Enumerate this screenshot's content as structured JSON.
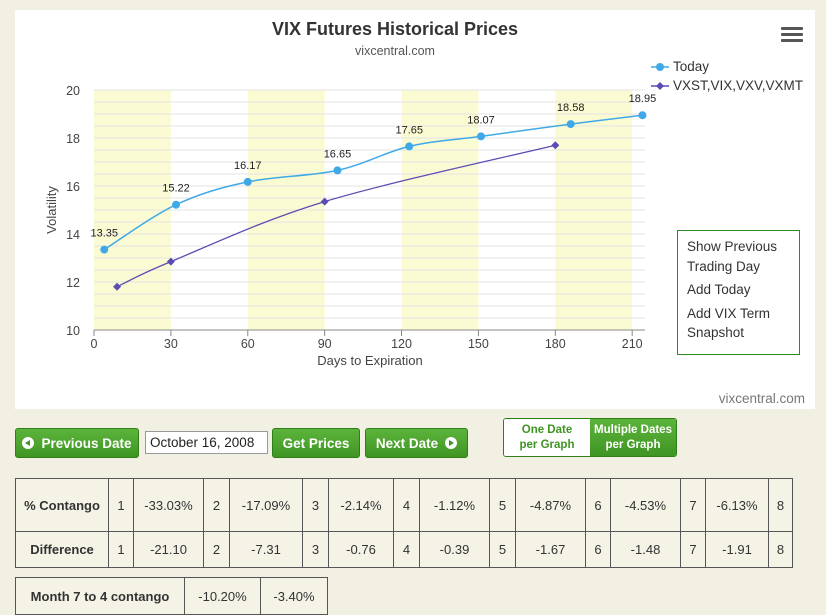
{
  "chart": {
    "title": "VIX Futures Historical Prices",
    "subtitle": "vixcentral.com",
    "credit": "vixcentral.com"
  },
  "chart_data": {
    "type": "line",
    "title": "VIX Futures Historical Prices",
    "subtitle": "vixcentral.com",
    "xlabel": "Days to Expiration",
    "ylabel": "Volatility",
    "xlim": [
      0,
      215
    ],
    "ylim": [
      10,
      20
    ],
    "x_ticks": [
      0,
      30,
      60,
      90,
      120,
      150,
      180,
      210
    ],
    "y_ticks": [
      10,
      12,
      14,
      16,
      18,
      20
    ],
    "grid": true,
    "legend_position": "top-right",
    "series": [
      {
        "name": "Today",
        "color": "#3fa9e8",
        "x": [
          4,
          32,
          60,
          95,
          123,
          151,
          186,
          214
        ],
        "y": [
          13.35,
          15.22,
          16.17,
          16.65,
          17.65,
          18.07,
          18.58,
          18.95
        ],
        "labels": [
          "13.35",
          "15.22",
          "16.17",
          "16.65",
          "17.65",
          "18.07",
          "18.58",
          "18.95"
        ]
      },
      {
        "name": "VXST,VIX,VXV,VXMT",
        "color": "#5b4db3",
        "x": [
          9,
          30,
          90,
          180
        ],
        "y": [
          11.8,
          12.85,
          15.35,
          17.7
        ]
      }
    ],
    "shaded_bands": [
      [
        0,
        30
      ],
      [
        60,
        90
      ],
      [
        120,
        150
      ],
      [
        180,
        210
      ]
    ]
  },
  "side_menu": {
    "show_previous": "Show Previous Trading Day",
    "add_today": "Add Today",
    "add_vix_term": "Add VIX Term Snapshot"
  },
  "controls": {
    "previous_date": "Previous Date",
    "date_value": "October 16, 2008",
    "get_prices": "Get Prices",
    "next_date": "Next Date",
    "one_date": "One Date per Graph",
    "multiple_dates": "Multiple Dates per Graph"
  },
  "table": {
    "contango_label": "% Contango",
    "contango": [
      {
        "month": "1",
        "value": "-33.03%"
      },
      {
        "month": "2",
        "value": "-17.09%"
      },
      {
        "month": "3",
        "value": "-2.14%"
      },
      {
        "month": "4",
        "value": "-1.12%"
      },
      {
        "month": "5",
        "value": "-4.87%"
      },
      {
        "month": "6",
        "value": "-4.53%"
      },
      {
        "month": "7",
        "value": "-6.13%"
      },
      {
        "month": "8",
        "value": ""
      }
    ],
    "difference_label": "Difference",
    "difference": [
      {
        "month": "1",
        "value": "-21.10"
      },
      {
        "month": "2",
        "value": "-7.31"
      },
      {
        "month": "3",
        "value": "-0.76"
      },
      {
        "month": "4",
        "value": "-0.39"
      },
      {
        "month": "5",
        "value": "-1.67"
      },
      {
        "month": "6",
        "value": "-1.48"
      },
      {
        "month": "7",
        "value": "-1.91"
      },
      {
        "month": "8",
        "value": ""
      }
    ]
  },
  "month_7_4": {
    "label": "Month 7 to 4 contango",
    "value1": "-10.20%",
    "value2": "-3.40%"
  }
}
